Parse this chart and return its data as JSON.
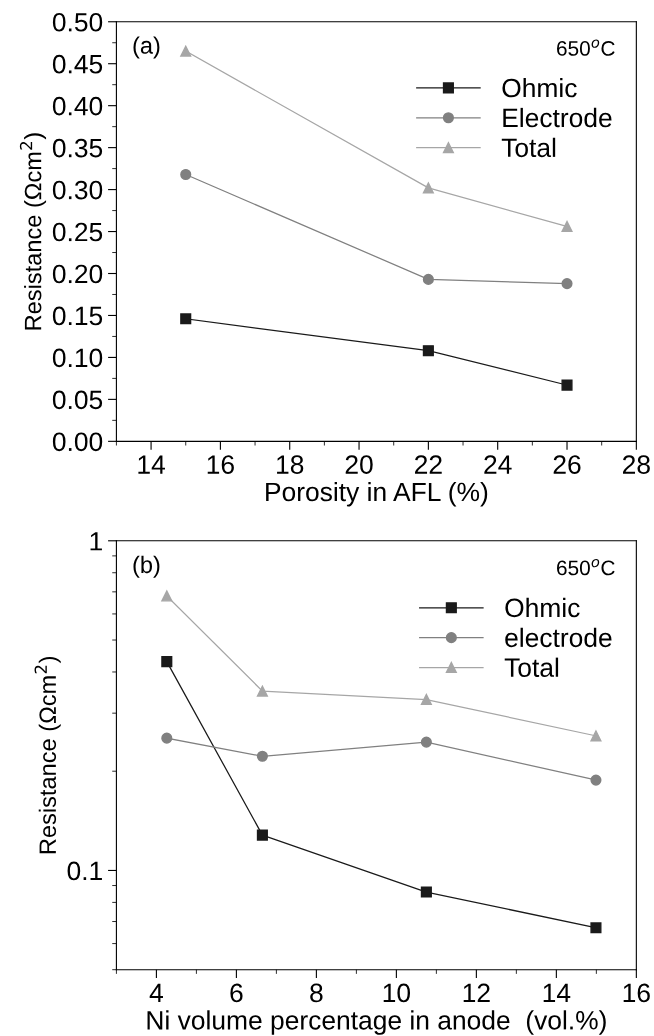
{
  "chart_data": [
    {
      "type": "line",
      "xlabel": "Porosity in AFL (%)",
      "ylabel": "Resistance (Ωcm$^{2}$)",
      "annotations": [
        "(a)",
        "650$^{o}$C"
      ],
      "x": [
        15,
        22,
        26
      ],
      "xlim": [
        13,
        28
      ],
      "xticks": [
        14,
        16,
        18,
        20,
        22,
        24,
        26,
        28
      ],
      "ylim": [
        0,
        0.5
      ],
      "yticks": [
        {
          "value": 0,
          "label": "0.00"
        },
        0.05,
        {
          "value": 0.1,
          "label": "0.10"
        },
        0.15,
        {
          "value": 0.2,
          "label": "0.20"
        },
        0.25,
        {
          "value": 0.3,
          "label": "0.30"
        },
        0.35,
        {
          "value": 0.4,
          "label": "0.40"
        },
        0.45,
        {
          "value": 0.5,
          "label": "0.50"
        }
      ],
      "legend": "top right",
      "grid": false,
      "series": [
        {
          "name": "Ohmic",
          "color": "#1a1a1a",
          "marker": "square",
          "values": [
            0.146,
            0.108,
            0.067
          ]
        },
        {
          "name": "Electrode",
          "color": "#808080",
          "marker": "circle",
          "values": [
            0.318,
            0.193,
            0.188
          ]
        },
        {
          "name": "Total",
          "color": "#a6a6a6",
          "marker": "triangle",
          "values": [
            0.465,
            0.302,
            0.256
          ]
        }
      ]
    },
    {
      "type": "line",
      "xlabel": "Ni volume percentage in anode  (vol.%)",
      "ylabel": "Resistance (Ωcm$^{2}$)",
      "annotations": [
        "(b)",
        "650$^{o}$C"
      ],
      "x": [
        4.26,
        6.65,
        10.75,
        14.99
      ],
      "xlim": [
        3,
        16
      ],
      "xticks": [
        4,
        6,
        8,
        10,
        12,
        14,
        16
      ],
      "log": "y",
      "ylim": [
        0.05,
        1
      ],
      "yticks": [
        0.1,
        1
      ],
      "legend": "top right",
      "grid": false,
      "series": [
        {
          "name": "Ohmic",
          "color": "#1a1a1a",
          "marker": "square",
          "values": [
            0.43,
            0.128,
            0.086,
            0.067
          ]
        },
        {
          "name": "electrode",
          "color": "#808080",
          "marker": "circle",
          "values": [
            0.252,
            0.222,
            0.245,
            0.188
          ]
        },
        {
          "name": "Total",
          "color": "#a6a6a6",
          "marker": "triangle",
          "values": [
            0.68,
            0.35,
            0.33,
            0.256
          ]
        }
      ]
    }
  ]
}
